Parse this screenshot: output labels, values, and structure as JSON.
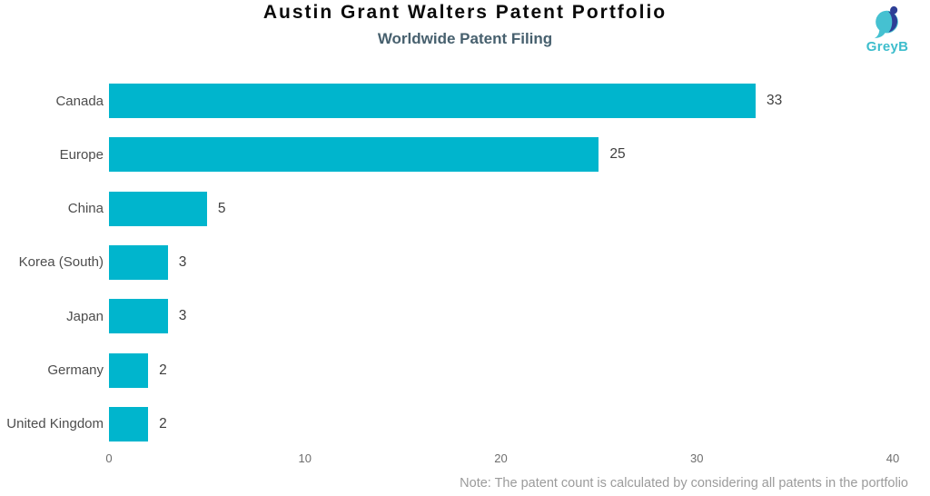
{
  "header": {
    "title": "Austin Grant Walters Patent Portfolio",
    "subtitle": "Worldwide Patent Filing"
  },
  "logo": {
    "text": "GreyB"
  },
  "chart_data": {
    "type": "bar",
    "orientation": "horizontal",
    "title": "Austin Grant Walters Patent Portfolio",
    "subtitle": "Worldwide Patent Filing",
    "categories": [
      "Canada",
      "Europe",
      "China",
      "Korea (South)",
      "Japan",
      "Germany",
      "United Kingdom"
    ],
    "values": [
      33,
      25,
      5,
      3,
      3,
      2,
      2
    ],
    "xlim": [
      0,
      40
    ],
    "x_ticks": [
      0,
      10,
      20,
      30,
      40
    ],
    "xlabel": "",
    "ylabel": "",
    "grid": false,
    "legend": false,
    "value_labels_shown": true
  },
  "note": "Note: The patent count is calculated by considering all patents in the portfolio",
  "colors": {
    "bar": "#00b5cd",
    "title": "#0a0a0a",
    "subtitle": "#47606e",
    "category_label": "#4d4d4d",
    "value_label": "#3f3f3f",
    "tick_label": "#6e6e6e",
    "note": "#9b9b9b",
    "logo_teal": "#45c1d1",
    "logo_blue": "#2d3f96"
  }
}
